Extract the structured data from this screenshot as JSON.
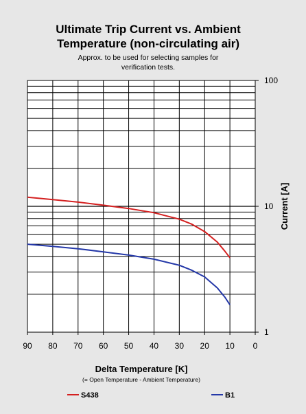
{
  "chart_data": {
    "type": "line",
    "title": "Ultimate Trip Current vs. Ambient",
    "title_line2": "Temperature (non-circulating air)",
    "subtitle": "Approx. to be used for selecting samples for",
    "subtitle_line2": "verification tests.",
    "xlabel": "Delta Temperature [K]",
    "xlabel_note": "(= Open Temperature - Ambient Temperature)",
    "ylabel": "Current [A]",
    "xlim": [
      90,
      0
    ],
    "ylim": [
      1,
      100
    ],
    "yscale": "log",
    "x_reversed": true,
    "grid": true,
    "legend_position": "bottom",
    "x_ticks": [
      "90",
      "80",
      "70",
      "60",
      "50",
      "40",
      "30",
      "20",
      "10",
      "0"
    ],
    "y_ticks": [
      "1",
      "10",
      "100"
    ],
    "series": [
      {
        "name": "S438",
        "color": "#d42020",
        "x": [
          90,
          80,
          70,
          60,
          50,
          40,
          30,
          25,
          20,
          15,
          12,
          10
        ],
        "y": [
          11.8,
          11.3,
          10.8,
          10.2,
          9.6,
          8.9,
          7.9,
          7.2,
          6.3,
          5.2,
          4.4,
          3.9
        ]
      },
      {
        "name": "B1",
        "color": "#2438a8",
        "x": [
          90,
          80,
          70,
          60,
          50,
          40,
          30,
          25,
          20,
          15,
          12,
          10
        ],
        "y": [
          5.0,
          4.8,
          4.6,
          4.35,
          4.1,
          3.8,
          3.4,
          3.1,
          2.75,
          2.25,
          1.9,
          1.65
        ]
      }
    ]
  }
}
